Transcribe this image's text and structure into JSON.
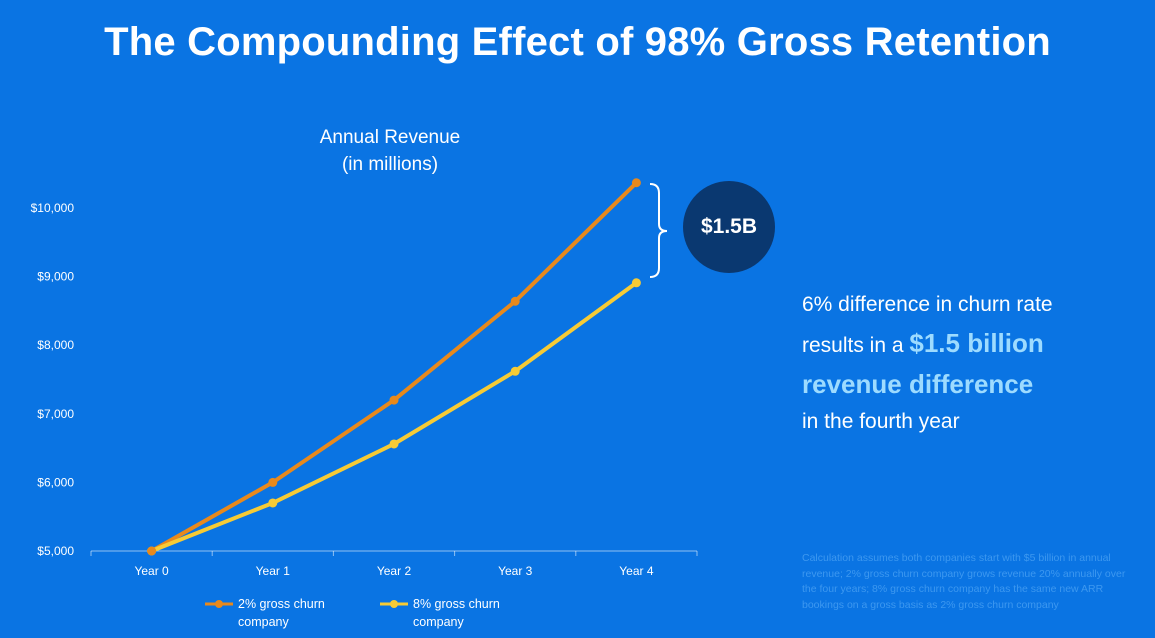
{
  "title": "The Compounding Effect of 98% Gross Retention",
  "chart_data": {
    "type": "line",
    "title_line1": "Annual Revenue",
    "title_line2": "(in millions)",
    "categories": [
      "Year 0",
      "Year 1",
      "Year 2",
      "Year 3",
      "Year 4"
    ],
    "series": [
      {
        "name": "2% gross churn company",
        "name_line1": "2% gross churn",
        "name_line2": "company",
        "color": "#E8891C",
        "values": [
          5000,
          6000,
          7200,
          8640,
          10368
        ]
      },
      {
        "name": "8% gross churn company",
        "name_line1": "8% gross churn",
        "name_line2": "company",
        "color": "#F7CB35",
        "values": [
          5000,
          5700,
          6560,
          7620,
          8910
        ]
      }
    ],
    "yticks": [
      "$5,000",
      "$6,000",
      "$7,000",
      "$8,000",
      "$9,000",
      "$10,000"
    ],
    "ytick_values": [
      5000,
      6000,
      7000,
      8000,
      9000,
      10000
    ],
    "ylim": [
      5000,
      10000
    ],
    "grid": false,
    "legend_position": "bottom",
    "difference_label": "$1.5B"
  },
  "callout": {
    "line1": "6% difference in churn rate",
    "line2_prefix": "results in a ",
    "highlight1": "$1.5 billion",
    "highlight2": "revenue difference",
    "line4": "in the fourth year"
  },
  "footnote": "Calculation assumes both companies start with $5 billion in annual revenue; 2% gross churn company grows revenue 20% annually over the four years; 8% gross churn company has the same new ARR bookings on a gross basis as 2% gross churn company"
}
